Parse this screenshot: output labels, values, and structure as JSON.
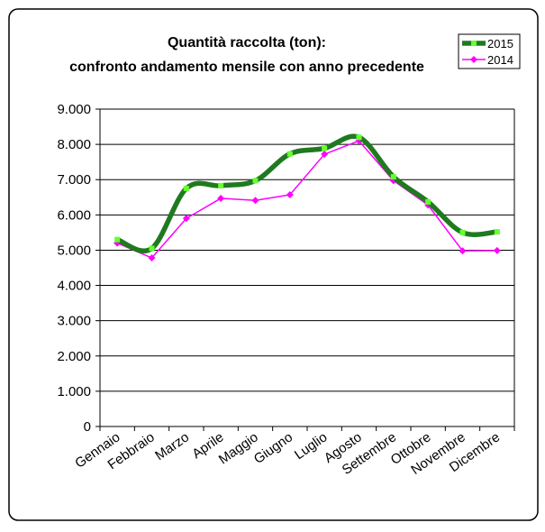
{
  "chart_data": {
    "type": "line",
    "title": [
      "Quantità raccolta (ton):",
      "confronto andamento mensile con anno precedente"
    ],
    "xlabel": "",
    "ylabel": "",
    "categories": [
      "Gennaio",
      "Febbraio",
      "Marzo",
      "Aprile",
      "Maggio",
      "Giugno",
      "Luglio",
      "Agosto",
      "Settembre",
      "Ottobre",
      "Novembre",
      "Dicembre"
    ],
    "y_tick_labels": [
      "0",
      "1.000",
      "2.000",
      "3.000",
      "4.000",
      "5.000",
      "6.000",
      "7.000",
      "8.000",
      "9.000"
    ],
    "ylim": [
      0,
      9000
    ],
    "grid": true,
    "legend_position": "top-right",
    "series": [
      {
        "name": "2015",
        "color": "#1f7a1f",
        "marker_color": "#66ff33",
        "values": [
          5300,
          5050,
          6750,
          6830,
          6970,
          7730,
          7890,
          8200,
          7080,
          6370,
          5500,
          5520
        ]
      },
      {
        "name": "2014",
        "color": "#ff00ff",
        "marker_color": "#ff00ff",
        "values": [
          5200,
          4780,
          5900,
          6470,
          6410,
          6570,
          7720,
          8100,
          6970,
          6280,
          4980,
          4990
        ]
      }
    ]
  }
}
